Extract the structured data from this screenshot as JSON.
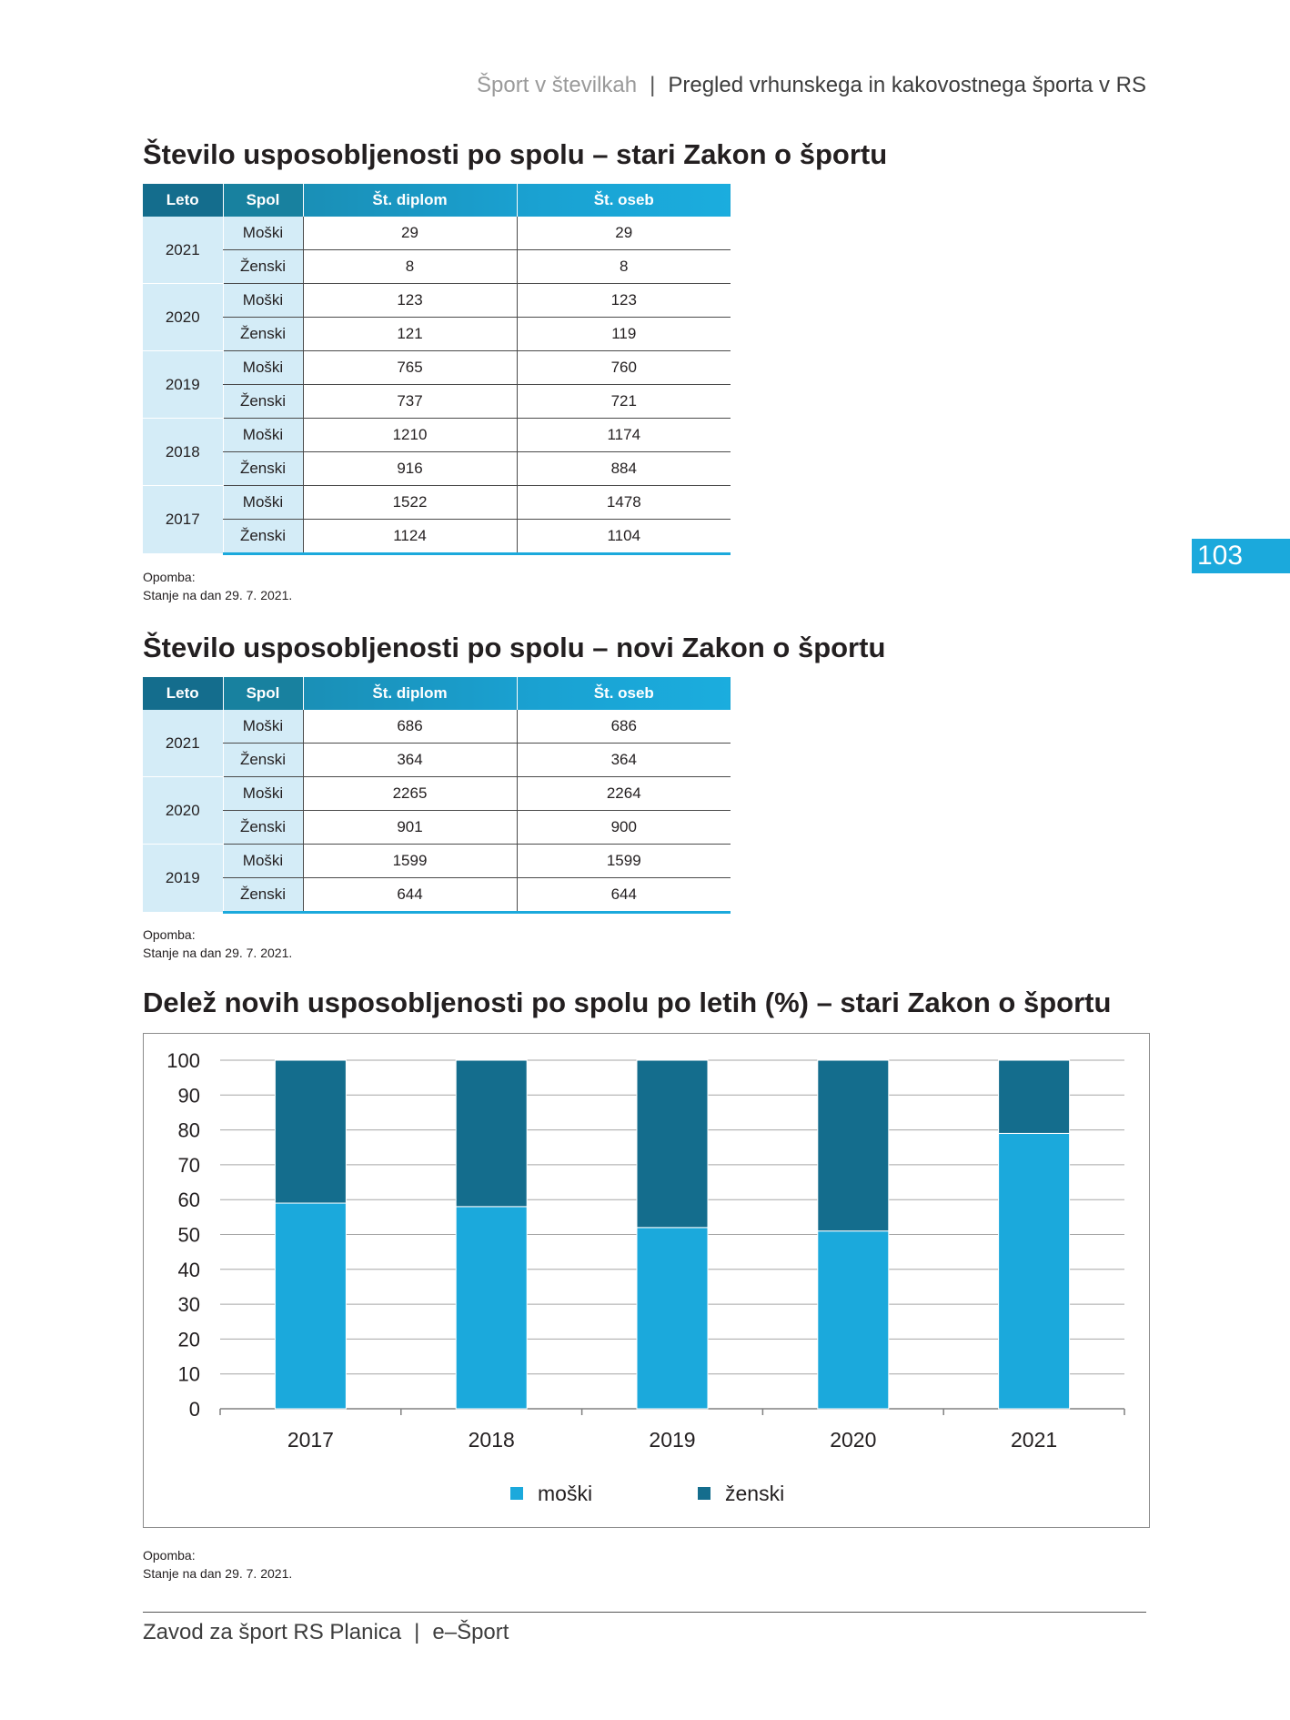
{
  "header": {
    "book": "Šport v številkah",
    "separator": "|",
    "chapter": "Pregled vrhunskega in kakovostnega športa v RS"
  },
  "page_number": "103",
  "columns": [
    "Leto",
    "Spol",
    "Št. diplom",
    "Št. oseb"
  ],
  "table_old": {
    "title": "Število usposobljenosti po spolu – stari Zakon o športu",
    "rows": [
      {
        "year": "2021",
        "m": [
          "Moški",
          "29",
          "29"
        ],
        "f": [
          "Ženski",
          "8",
          "8"
        ]
      },
      {
        "year": "2020",
        "m": [
          "Moški",
          "123",
          "123"
        ],
        "f": [
          "Ženski",
          "121",
          "119"
        ]
      },
      {
        "year": "2019",
        "m": [
          "Moški",
          "765",
          "760"
        ],
        "f": [
          "Ženski",
          "737",
          "721"
        ]
      },
      {
        "year": "2018",
        "m": [
          "Moški",
          "1210",
          "1174"
        ],
        "f": [
          "Ženski",
          "916",
          "884"
        ]
      },
      {
        "year": "2017",
        "m": [
          "Moški",
          "1522",
          "1478"
        ],
        "f": [
          "Ženski",
          "1124",
          "1104"
        ]
      }
    ],
    "note_label": "Opomba:",
    "note_text": "Stanje na dan 29. 7. 2021."
  },
  "table_new": {
    "title": "Število usposobljenosti po spolu – novi Zakon o športu",
    "rows": [
      {
        "year": "2021",
        "m": [
          "Moški",
          "686",
          "686"
        ],
        "f": [
          "Ženski",
          "364",
          "364"
        ]
      },
      {
        "year": "2020",
        "m": [
          "Moški",
          "2265",
          "2264"
        ],
        "f": [
          "Ženski",
          "901",
          "900"
        ]
      },
      {
        "year": "2019",
        "m": [
          "Moški",
          "1599",
          "1599"
        ],
        "f": [
          "Ženski",
          "644",
          "644"
        ]
      }
    ],
    "note_label": "Opomba:",
    "note_text": "Stanje na dan 29. 7. 2021."
  },
  "chart_section": {
    "title": "Delež novih usposobljenosti po spolu po letih (%) – stari Zakon o športu",
    "note_label": "Opomba:",
    "note_text": "Stanje na dan 29. 7. 2021."
  },
  "chart_data": {
    "type": "bar",
    "stacked": true,
    "categories": [
      "2017",
      "2018",
      "2019",
      "2020",
      "2021"
    ],
    "series": [
      {
        "name": "moški",
        "color": "#1ba9dc",
        "values": [
          59,
          58,
          52,
          51,
          79
        ]
      },
      {
        "name": "ženski",
        "color": "#146d8d",
        "values": [
          41,
          42,
          48,
          49,
          21
        ]
      }
    ],
    "ylim": [
      0,
      100
    ],
    "yticks": [
      0,
      10,
      20,
      30,
      40,
      50,
      60,
      70,
      80,
      90,
      100
    ],
    "grid": true,
    "legend": "bottom-center"
  },
  "footer": {
    "org": "Zavod za šport RS Planica",
    "separator": "|",
    "label": "e–Šport"
  }
}
